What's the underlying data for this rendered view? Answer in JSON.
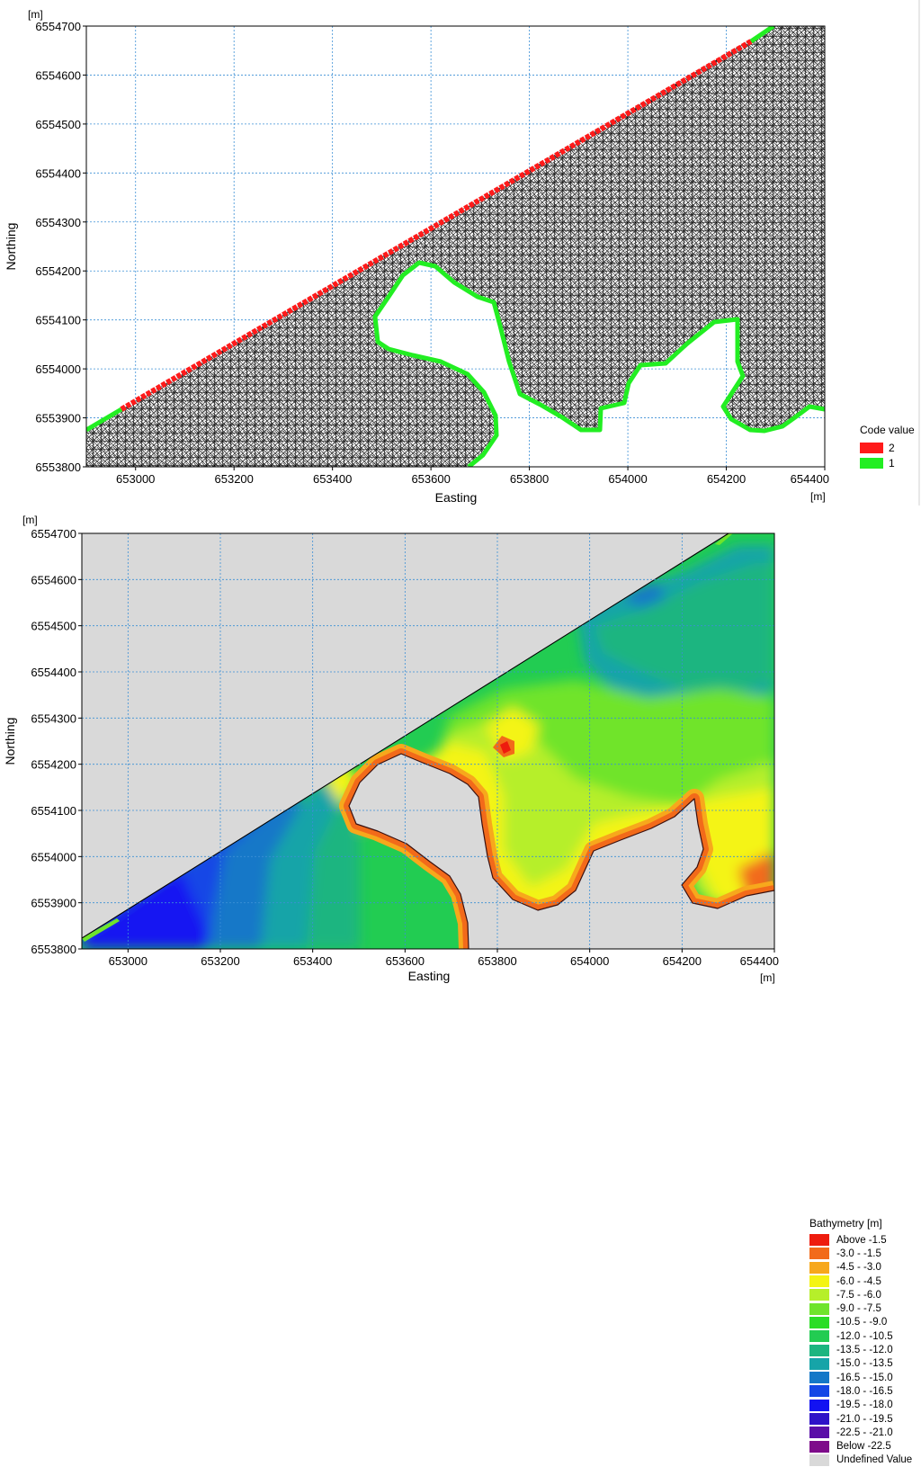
{
  "top_map": {
    "corner_unit": "[m]",
    "x_unit": "[m]",
    "xlabel": "Easting",
    "ylabel": "Northing",
    "x_ticks": [
      "653000",
      "653200",
      "653400",
      "653600",
      "653800",
      "654000",
      "654200",
      "654400"
    ],
    "y_ticks": [
      "6554700",
      "6554600",
      "6554500",
      "6554400",
      "6554300",
      "6554200",
      "6554100",
      "6554000",
      "6553900",
      "6553800"
    ],
    "x_range": [
      652900,
      654400
    ],
    "y_range": [
      6553800,
      6554700
    ],
    "mesh_color": "#000000",
    "legend_title": "Code value",
    "legend": [
      {
        "label": "2",
        "color": "#ff1a1a"
      },
      {
        "label": "1",
        "color": "#22ee22"
      }
    ]
  },
  "bottom_map": {
    "corner_unit": "[m]",
    "x_unit": "[m]",
    "xlabel": "Easting",
    "ylabel": "Northing",
    "x_ticks": [
      "653000",
      "653200",
      "653400",
      "653600",
      "653800",
      "654000",
      "654200",
      "654400"
    ],
    "y_ticks": [
      "6554700",
      "6554600",
      "6554500",
      "6554400",
      "6554300",
      "6554200",
      "6554100",
      "6554000",
      "6553900",
      "6553800"
    ],
    "x_range": [
      652900,
      654400
    ],
    "y_range": [
      6553800,
      6554700
    ],
    "undefined_color": "#d9d9d9",
    "legend_title": "Bathymetry [m]",
    "legend": [
      {
        "label": "Above  -1.5",
        "color": "#ee1c0e"
      },
      {
        "label": "-3.0 -  -1.5",
        "color": "#f26a1a"
      },
      {
        "label": "-4.5 -  -3.0",
        "color": "#f7a81c"
      },
      {
        "label": "-6.0 -  -4.5",
        "color": "#f4f413"
      },
      {
        "label": "-7.5 -  -6.0",
        "color": "#b6ef2a"
      },
      {
        "label": "-9.0 -  -7.5",
        "color": "#6fe42c"
      },
      {
        "label": "-10.5 -  -9.0",
        "color": "#2add26"
      },
      {
        "label": "-12.0 - -10.5",
        "color": "#22cc52"
      },
      {
        "label": "-13.5 - -12.0",
        "color": "#1cb580"
      },
      {
        "label": "-15.0 - -13.5",
        "color": "#16a4a8"
      },
      {
        "label": "-16.5 - -15.0",
        "color": "#1478c8"
      },
      {
        "label": "-18.0 - -16.5",
        "color": "#1447e6"
      },
      {
        "label": "-19.5 - -18.0",
        "color": "#1212f2"
      },
      {
        "label": "-21.0 - -19.5",
        "color": "#2e12c8"
      },
      {
        "label": "-22.5 - -21.0",
        "color": "#5a0ea8"
      },
      {
        "label": "Below  -22.5",
        "color": "#7e0c8a"
      },
      {
        "label": "Undefined Value",
        "color": "#d9d9d9"
      }
    ]
  }
}
